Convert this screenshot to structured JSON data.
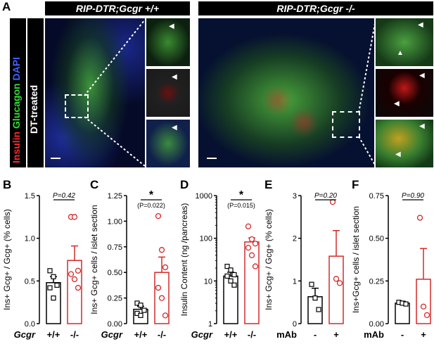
{
  "figure": {
    "panelA": {
      "letter": "A",
      "header_left": "RIP-DTR;Gcgr +/+",
      "header_right": "RIP-DTR;Gcgr -/-",
      "stain_insulin": "Insulin",
      "stain_glucagon": "Glucagon",
      "stain_dapi": "DAPI",
      "treatment": "DT-treated",
      "colors": {
        "insulin": "#ff1a1a",
        "glucagon": "#2ecc2e",
        "dapi": "#3050ff"
      }
    }
  },
  "chart_data": [
    {
      "panel": "B",
      "type": "bar",
      "ylabel": "Ins+ Gcg+ / Gcg+ (% cells)",
      "ylim": [
        0,
        1.5
      ],
      "yticks": [
        "0.0",
        "0.5",
        "1.0",
        "1.5"
      ],
      "yvals": [
        0,
        0.5,
        1.0,
        1.5
      ],
      "xaxis_name": "Gcgr",
      "categories": [
        "+/+",
        "-/-"
      ],
      "means": [
        0.48,
        0.74
      ],
      "sems": [
        0.07,
        0.17
      ],
      "points": [
        [
          0.62,
          0.55,
          0.45,
          0.42,
          0.3
        ],
        [
          1.25,
          1.25,
          0.62,
          0.58,
          0.52,
          0.42
        ]
      ],
      "p_text": "P=0.42",
      "star": "",
      "p_sub": ""
    },
    {
      "panel": "C",
      "type": "bar",
      "ylabel": "Ins+ Gcg+ cells / islet section",
      "ylim": [
        0,
        1.25
      ],
      "yticks": [
        "0.00",
        "0.25",
        "0.50",
        "0.75",
        "1.00",
        "1.25"
      ],
      "yvals": [
        0,
        0.25,
        0.5,
        0.75,
        1.0,
        1.25
      ],
      "xaxis_name": "Gcgr",
      "categories": [
        "+/+",
        "-/-"
      ],
      "means": [
        0.14,
        0.5
      ],
      "sems": [
        0.03,
        0.15
      ],
      "points": [
        [
          0.2,
          0.18,
          0.13,
          0.1,
          0.08
        ],
        [
          1.05,
          0.72,
          0.55,
          0.35,
          0.25,
          0.08
        ]
      ],
      "p_text": "",
      "star": "*",
      "p_sub": "(P=0.022)"
    },
    {
      "panel": "D",
      "type": "bar",
      "ylabel": "Insulin Content (ng /pancreas)",
      "scale": "log",
      "ylim": [
        1,
        1000
      ],
      "yticks": [
        "1",
        "10",
        "100",
        "1000"
      ],
      "yvals": [
        1,
        10,
        100,
        1000
      ],
      "xaxis_name": "Gcgr",
      "categories": [
        "+/+",
        "-/-"
      ],
      "means": [
        13,
        82
      ],
      "sems": [
        3,
        20
      ],
      "points": [
        [
          22,
          18,
          14,
          13,
          10,
          8
        ],
        [
          190,
          95,
          75,
          60,
          40,
          22
        ]
      ],
      "p_text": "",
      "star": "*",
      "p_sub": "(P=0.015)"
    },
    {
      "panel": "E",
      "type": "bar",
      "ylabel": "Ins+ Gcg+ / Gcg+ (% cells)",
      "ylim": [
        0,
        3
      ],
      "yticks": [
        "0",
        "1",
        "2",
        "3"
      ],
      "yvals": [
        0,
        1,
        2,
        3
      ],
      "xaxis_name": "mAb",
      "categories": [
        "-",
        "+"
      ],
      "means": [
        0.63,
        1.58
      ],
      "sems": [
        0.2,
        0.6
      ],
      "points": [
        [
          0.92,
          0.6,
          0.33
        ],
        [
          2.85,
          1.05,
          0.95
        ]
      ],
      "p_text": "P=0.20",
      "star": "",
      "p_sub": ""
    },
    {
      "panel": "F",
      "type": "bar",
      "ylabel": "Ins+Gcg+ cells / islet section",
      "ylim": [
        0,
        0.75
      ],
      "yticks": [
        "0.00",
        "0.25",
        "0.50",
        "0.75"
      ],
      "yvals": [
        0,
        0.25,
        0.5,
        0.75
      ],
      "xaxis_name": "mAb",
      "categories": [
        "-",
        "+"
      ],
      "means": [
        0.12,
        0.26
      ],
      "sems": [
        0.01,
        0.18
      ],
      "points": [
        [
          0.125,
          0.12,
          0.115
        ],
        [
          0.62,
          0.1,
          0.05
        ]
      ],
      "p_text": "P=0.90",
      "star": "",
      "p_sub": ""
    }
  ]
}
